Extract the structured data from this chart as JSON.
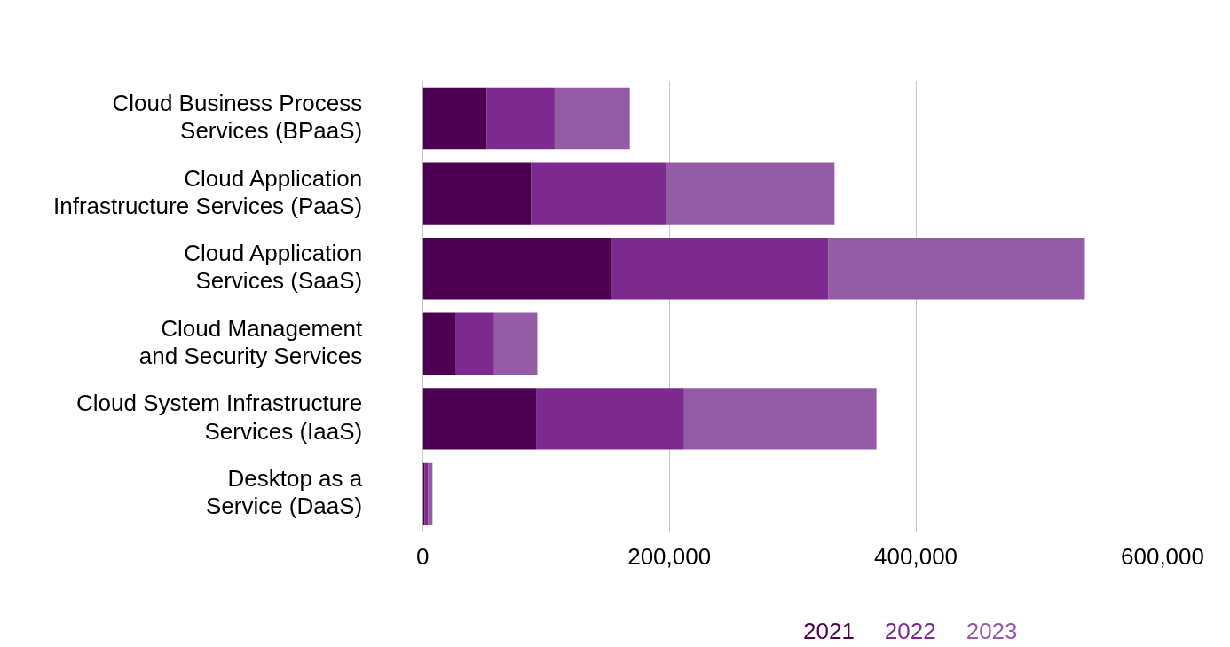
{
  "chart_data": {
    "type": "bar",
    "orientation": "horizontal",
    "stacked": true,
    "categories": [
      "Cloud Business Process Services (BPaaS)",
      "Cloud Application Infrastructure Services (PaaS)",
      "Cloud Application Services (SaaS)",
      "Cloud Management and Security Services",
      "Cloud System Infrastructure Services (IaaS)",
      "Desktop as a Service (DaaS)"
    ],
    "series": [
      {
        "name": "2021",
        "color": "#4b0050",
        "values": [
          52000,
          88000,
          153000,
          27000,
          92000,
          1500
        ]
      },
      {
        "name": "2022",
        "color": "#7d2a8f",
        "values": [
          55000,
          109000,
          176000,
          31000,
          120000,
          3000
        ]
      },
      {
        "name": "2023",
        "color": "#945ca5",
        "values": [
          61000,
          137000,
          208000,
          35000,
          156000,
          3500
        ]
      }
    ],
    "xlim": [
      0,
      600000
    ],
    "xticks": [
      {
        "value": 0,
        "label": "0"
      },
      {
        "value": 200000,
        "label": "200,000"
      },
      {
        "value": 400000,
        "label": "400,000"
      },
      {
        "value": 600000,
        "label": "600,000"
      }
    ],
    "grid": "x",
    "legend": "bottom right"
  }
}
